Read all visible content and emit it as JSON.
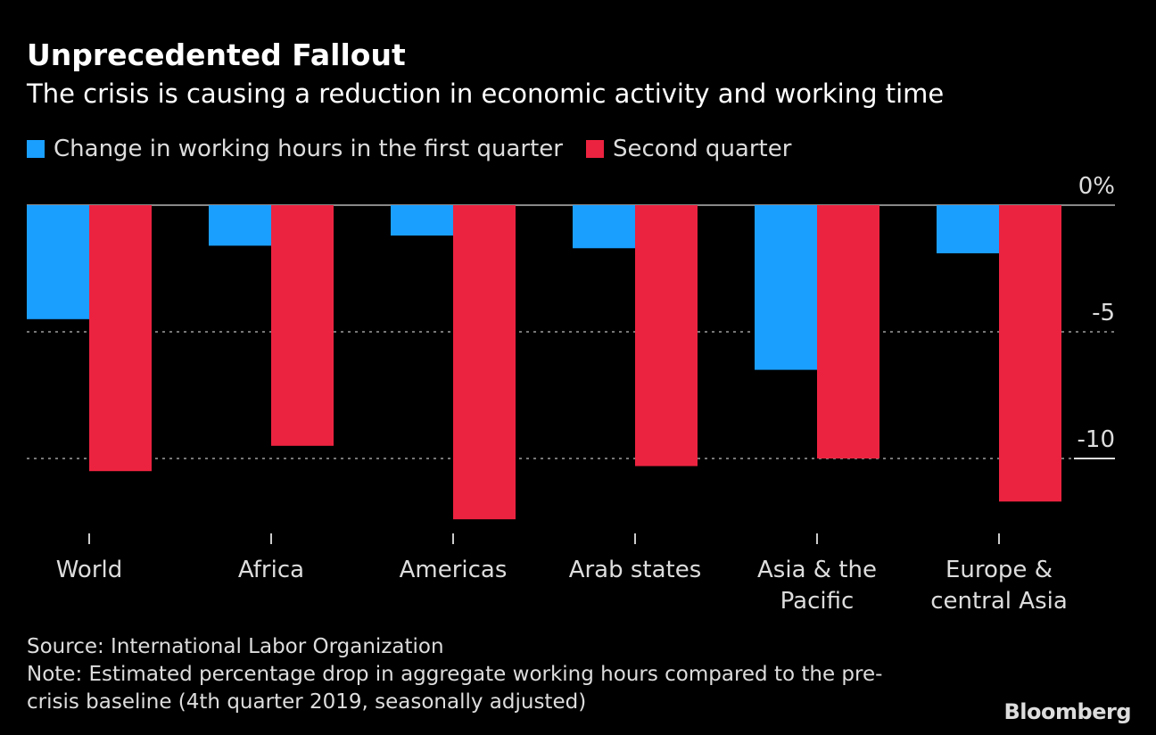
{
  "chart_data": {
    "type": "bar",
    "title": "Unprecedented Fallout",
    "subtitle": "The crisis is causing a reduction in economic activity and working time",
    "categories": [
      [
        "World"
      ],
      [
        "Africa"
      ],
      [
        "Americas"
      ],
      [
        "Arab states"
      ],
      [
        "Asia & the",
        "Pacific"
      ],
      [
        "Europe &",
        "central Asia"
      ]
    ],
    "series": [
      {
        "name": "Change in working hours in the first quarter",
        "color": "#1a9fff",
        "values": [
          -4.5,
          -1.6,
          -1.2,
          -1.7,
          -6.5,
          -1.9
        ]
      },
      {
        "name": "Second quarter",
        "color": "#ec2340",
        "values": [
          -10.5,
          -9.5,
          -12.4,
          -10.3,
          -10.0,
          -11.7
        ]
      }
    ],
    "yticks": [
      {
        "value": 0,
        "label": "0%"
      },
      {
        "value": -5,
        "label": "-5"
      },
      {
        "value": -10,
        "label": "-10"
      }
    ],
    "ylim": [
      -13,
      0
    ],
    "grid": true,
    "legend": "top-left"
  },
  "footer": {
    "source": "Source: International Labor Organization",
    "note_line1": "Note: Estimated percentage drop in aggregate working hours compared to the pre-",
    "note_line2": "crisis baseline (4th quarter 2019, seasonally adjusted)",
    "logo": "Bloomberg"
  }
}
